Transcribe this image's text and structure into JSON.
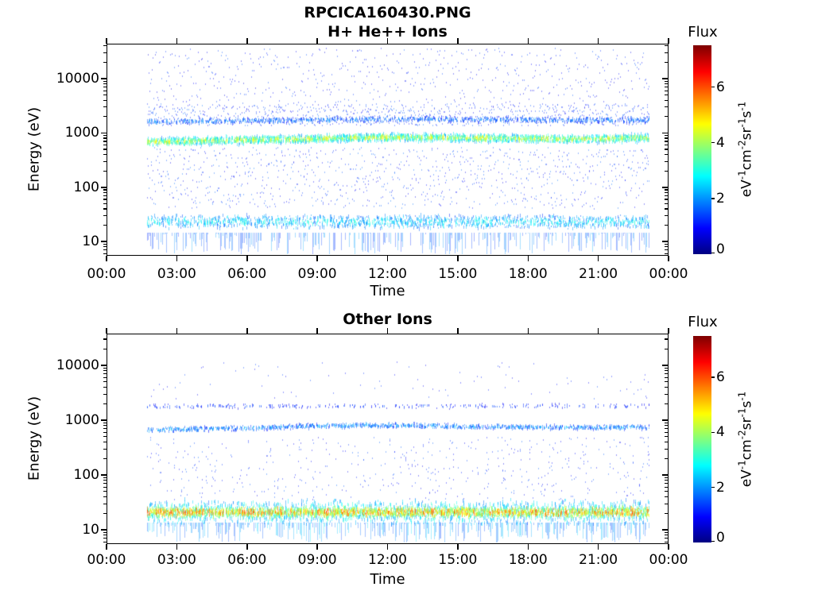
{
  "figure_title": "RPCICA160430.PNG",
  "colors": {
    "background": "#ffffff",
    "axis": "#000000",
    "text": "#000000"
  },
  "chart_data": [
    {
      "type": "heatmap",
      "title": "H+ He++ Ions",
      "xlabel": "Time",
      "ylabel": "Energy (eV)",
      "x_ticks": [
        "00:00",
        "03:00",
        "06:00",
        "09:00",
        "12:00",
        "15:00",
        "18:00",
        "21:00",
        "00:00"
      ],
      "x_tick_hours": [
        0,
        3,
        6,
        9,
        12,
        15,
        18,
        21,
        24
      ],
      "y_ticks": [
        "10",
        "100",
        "1000",
        "10000"
      ],
      "y_tick_values": [
        10,
        100,
        1000,
        10000
      ],
      "y_scale": "log",
      "y_range_ev": [
        5.5,
        44000
      ],
      "x_range_hours": [
        0,
        24
      ],
      "grid": false,
      "data_time_span_hours": [
        1.7,
        23.2
      ],
      "seed": 20160430,
      "colorbar": {
        "title": "Flux",
        "unit_parts": [
          [
            "eV",
            "-1"
          ],
          [
            "cm",
            "-2"
          ],
          [
            "sr",
            "-1"
          ],
          [
            "s",
            "-1"
          ]
        ],
        "ticks": [
          "0",
          "2",
          "4",
          "6"
        ],
        "tick_values": [
          0,
          2,
          4,
          6
        ],
        "range": [
          0,
          7.5
        ],
        "colormap": "jet"
      },
      "features": [
        {
          "kind": "scatter",
          "name": "high-energy-speckle",
          "energy_ev": [
            2500,
            38000
          ],
          "rate": 1.0,
          "flux": [
            0.6,
            1.6
          ],
          "dot_h": 2
        },
        {
          "kind": "scatter",
          "name": "above-band-speckle",
          "energy_ev": [
            1400,
            3500
          ],
          "rate": 1.2,
          "flux": [
            0.8,
            1.8
          ],
          "dot_h": 2
        },
        {
          "kind": "band",
          "name": "he++-alpha-band",
          "center_ev": 1700,
          "half_dec": 0.06,
          "density": 0.82,
          "flux_core": 1.9,
          "flux_edge": 1.0,
          "nseg": [
            1,
            3
          ],
          "seg_h": [
            2,
            4
          ],
          "drift": [
            [
              1.7,
              0.95
            ],
            [
              8,
              1.0
            ],
            [
              13,
              1.06
            ],
            [
              18,
              1.02
            ],
            [
              23.2,
              1.0
            ]
          ]
        },
        {
          "kind": "band",
          "name": "h+-solar-wind-band",
          "center_ev": 760,
          "half_dec": 0.085,
          "density": 0.97,
          "flux_core": 4.2,
          "flux_edge": 2.0,
          "nseg": [
            3,
            6
          ],
          "seg_h": [
            2,
            5
          ],
          "drift": [
            [
              1.7,
              0.88
            ],
            [
              4,
              0.93
            ],
            [
              8,
              1.0
            ],
            [
              12,
              1.08
            ],
            [
              16,
              1.05
            ],
            [
              20,
              1.0
            ],
            [
              23.2,
              1.06
            ]
          ]
        },
        {
          "kind": "scatter",
          "name": "mid-energy-speckle",
          "energy_ev": [
            40,
            550
          ],
          "rate": 1.5,
          "flux": [
            0.7,
            1.8
          ],
          "dot_h": 2
        },
        {
          "kind": "band",
          "name": "low-energy-band",
          "center_ev": 22,
          "half_dec": 0.14,
          "density": 0.85,
          "flux_core": 2.7,
          "flux_edge": 1.6,
          "nseg": [
            2,
            4
          ],
          "seg_h": [
            2,
            5
          ]
        },
        {
          "kind": "tails",
          "name": "low-energy-tails",
          "energy_ev": [
            5.5,
            14
          ],
          "prob": 0.45,
          "flux": [
            1.2,
            2.2
          ]
        }
      ]
    },
    {
      "type": "heatmap",
      "title": "Other Ions",
      "xlabel": "Time",
      "ylabel": "Energy (eV)",
      "x_ticks": [
        "00:00",
        "03:00",
        "06:00",
        "09:00",
        "12:00",
        "15:00",
        "18:00",
        "21:00",
        "00:00"
      ],
      "x_tick_hours": [
        0,
        3,
        6,
        9,
        12,
        15,
        18,
        21,
        24
      ],
      "y_ticks": [
        "10",
        "100",
        "1000",
        "10000"
      ],
      "y_tick_values": [
        10,
        100,
        1000,
        10000
      ],
      "y_scale": "log",
      "y_range_ev": [
        5.5,
        38000
      ],
      "x_range_hours": [
        0,
        24
      ],
      "grid": false,
      "data_time_span_hours": [
        1.7,
        23.2
      ],
      "seed": 20160431,
      "colorbar": {
        "title": "Flux",
        "unit_parts": [
          [
            "eV",
            "-1"
          ],
          [
            "cm",
            "-2"
          ],
          [
            "sr",
            "-1"
          ],
          [
            "s",
            "-1"
          ]
        ],
        "ticks": [
          "0",
          "2",
          "4",
          "6"
        ],
        "tick_values": [
          0,
          2,
          4,
          6
        ],
        "range": [
          0,
          7.5
        ],
        "colormap": "jet"
      },
      "features": [
        {
          "kind": "scatter",
          "name": "high-energy-speckle",
          "energy_ev": [
            2500,
            12000
          ],
          "rate": 0.15,
          "flux": [
            0.8,
            1.5
          ],
          "dot_h": 2
        },
        {
          "kind": "band",
          "name": "faint-upper-band",
          "center_ev": 1800,
          "half_dec": 0.05,
          "density": 0.34,
          "flux_core": 1.4,
          "flux_edge": 0.8,
          "nseg": [
            1,
            2
          ],
          "seg_h": [
            2,
            3
          ]
        },
        {
          "kind": "band",
          "name": "other-ion-band",
          "center_ev": 730,
          "half_dec": 0.05,
          "density": 0.85,
          "flux_core": 2.1,
          "flux_edge": 1.2,
          "nseg": [
            1,
            3
          ],
          "seg_h": [
            2,
            4
          ],
          "drift": [
            [
              1.7,
              0.9
            ],
            [
              6,
              0.97
            ],
            [
              9,
              1.06
            ],
            [
              12,
              1.1
            ],
            [
              16,
              1.03
            ],
            [
              20,
              1.0
            ],
            [
              23.2,
              1.0
            ]
          ]
        },
        {
          "kind": "scatter",
          "name": "mid-energy-speckle",
          "energy_ev": [
            35,
            500
          ],
          "rate": 0.9,
          "flux": [
            0.7,
            1.7
          ],
          "dot_h": 2,
          "bursty": true
        },
        {
          "kind": "band",
          "name": "low-energy-fringe",
          "center_ev": 20,
          "half_dec": 0.24,
          "density": 0.92,
          "flux_core": 3.3,
          "flux_edge": 2.0,
          "nseg": [
            2,
            4
          ],
          "seg_h": [
            3,
            6
          ]
        },
        {
          "kind": "band",
          "name": "low-energy-core",
          "center_ev": 20,
          "half_dec": 0.1,
          "density": 0.97,
          "flux_core": 5.2,
          "flux_edge": 3.8,
          "nseg": [
            3,
            6
          ],
          "seg_h": [
            2,
            5
          ]
        },
        {
          "kind": "tails",
          "name": "low-energy-tails",
          "energy_ev": [
            5.5,
            13
          ],
          "prob": 0.55,
          "flux": [
            1.4,
            2.6
          ]
        }
      ]
    }
  ]
}
